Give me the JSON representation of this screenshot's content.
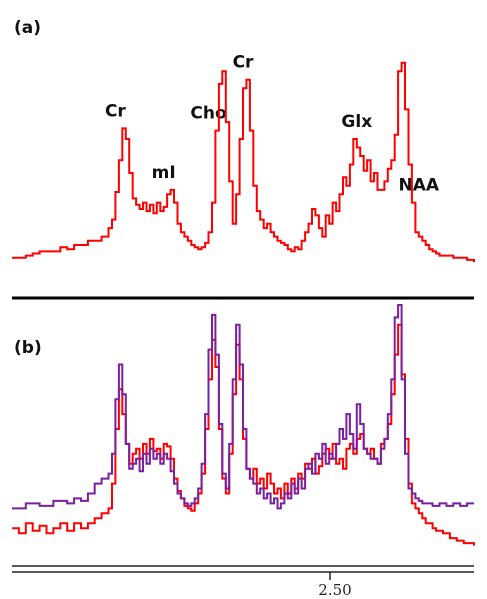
{
  "chart_data": [
    {
      "type": "line",
      "panel_label": "(a)",
      "peak_labels": [
        {
          "text": "Cr",
          "x": 30
        },
        {
          "text": "mI",
          "x": 44
        },
        {
          "text": "Cho",
          "x": 57
        },
        {
          "text": "Cr",
          "x": 67
        },
        {
          "text": "Glx",
          "x": 100
        },
        {
          "text": "NAA",
          "x": 118
        }
      ],
      "xlim": [
        0,
        134
      ],
      "ylim": [
        0,
        100
      ],
      "series": [
        {
          "color": "#ff0000",
          "x": [
            0,
            4,
            6,
            8,
            10,
            12,
            14,
            16,
            18,
            20,
            22,
            24,
            26,
            28,
            29,
            30,
            31,
            32,
            33,
            34,
            35,
            36,
            37,
            38,
            39,
            40,
            41,
            42,
            43,
            44,
            45,
            46,
            47,
            48,
            49,
            50,
            51,
            52,
            53,
            54,
            55,
            56,
            57,
            58,
            59,
            60,
            61,
            62,
            63,
            64,
            65,
            66,
            67,
            68,
            69,
            70,
            71,
            72,
            73,
            74,
            75,
            76,
            77,
            78,
            79,
            80,
            81,
            82,
            83,
            84,
            85,
            86,
            87,
            88,
            89,
            90,
            91,
            92,
            93,
            94,
            95,
            96,
            97,
            98,
            99,
            100,
            101,
            102,
            103,
            104,
            105,
            106,
            107,
            108,
            109,
            110,
            111,
            112,
            113,
            114,
            115,
            116,
            117,
            118,
            119,
            120,
            121,
            122,
            123,
            124,
            125,
            126,
            127,
            128,
            129,
            130,
            131,
            132,
            134
          ],
          "y": [
            2,
            3,
            4,
            5,
            5,
            5,
            7,
            6,
            8,
            8,
            10,
            10,
            12,
            16,
            20,
            33,
            48,
            63,
            58,
            42,
            30,
            27,
            25,
            28,
            24,
            27,
            23,
            28,
            24,
            26,
            32,
            34,
            28,
            18,
            14,
            12,
            10,
            8,
            7,
            6,
            7,
            9,
            14,
            28,
            62,
            84,
            90,
            66,
            38,
            18,
            32,
            58,
            82,
            86,
            62,
            36,
            24,
            20,
            16,
            18,
            14,
            12,
            10,
            9,
            8,
            6,
            5,
            7,
            6,
            10,
            14,
            18,
            25,
            22,
            16,
            12,
            22,
            18,
            28,
            24,
            32,
            40,
            36,
            46,
            58,
            54,
            50,
            43,
            48,
            38,
            42,
            34,
            34,
            38,
            44,
            48,
            60,
            90,
            94,
            72,
            46,
            28,
            14,
            12,
            10,
            8,
            6,
            5,
            4,
            3,
            3,
            3,
            3,
            2,
            2,
            2,
            2,
            1,
            0
          ]
        }
      ]
    },
    {
      "type": "line",
      "panel_label": "(b)",
      "tick_label": "2.50",
      "xlim": [
        0,
        134
      ],
      "ylim": [
        0,
        100
      ],
      "series": [
        {
          "color": "#ff0000",
          "x": [
            0,
            2,
            4,
            6,
            8,
            10,
            12,
            14,
            16,
            18,
            20,
            22,
            24,
            26,
            28,
            29,
            30,
            31,
            32,
            33,
            34,
            35,
            36,
            37,
            38,
            39,
            40,
            41,
            42,
            43,
            44,
            45,
            46,
            47,
            48,
            49,
            50,
            51,
            52,
            53,
            54,
            55,
            56,
            57,
            58,
            59,
            60,
            61,
            62,
            63,
            64,
            65,
            66,
            67,
            68,
            69,
            70,
            71,
            72,
            73,
            74,
            75,
            76,
            77,
            78,
            79,
            80,
            81,
            82,
            83,
            84,
            85,
            86,
            87,
            88,
            89,
            90,
            91,
            92,
            93,
            94,
            95,
            96,
            97,
            98,
            99,
            100,
            101,
            102,
            103,
            104,
            105,
            106,
            107,
            108,
            109,
            110,
            111,
            112,
            113,
            114,
            115,
            116,
            117,
            118,
            119,
            120,
            121,
            122,
            123,
            124,
            125,
            126,
            127,
            128,
            129,
            130,
            131,
            132,
            134
          ],
          "y": [
            10,
            8,
            12,
            9,
            11,
            8,
            10,
            12,
            9,
            12,
            10,
            12,
            14,
            16,
            18,
            28,
            50,
            66,
            56,
            44,
            36,
            40,
            42,
            38,
            44,
            40,
            46,
            41,
            42,
            38,
            44,
            43,
            38,
            30,
            25,
            22,
            19,
            18,
            17,
            20,
            24,
            32,
            50,
            70,
            86,
            75,
            50,
            30,
            24,
            40,
            64,
            84,
            70,
            46,
            34,
            30,
            34,
            28,
            30,
            26,
            32,
            28,
            24,
            26,
            22,
            28,
            24,
            30,
            26,
            32,
            30,
            36,
            34,
            38,
            32,
            35,
            40,
            42,
            38,
            44,
            36,
            38,
            34,
            42,
            44,
            40,
            46,
            48,
            42,
            40,
            42,
            38,
            36,
            44,
            46,
            52,
            64,
            80,
            92,
            72,
            46,
            28,
            20,
            18,
            16,
            14,
            12,
            12,
            10,
            9,
            9,
            8,
            8,
            6,
            6,
            5,
            5,
            4,
            4,
            3
          ]
        },
        {
          "color": "#7b1fa2",
          "x": [
            0,
            4,
            8,
            12,
            16,
            18,
            20,
            22,
            24,
            26,
            28,
            29,
            30,
            31,
            32,
            33,
            34,
            35,
            36,
            37,
            38,
            39,
            40,
            41,
            42,
            43,
            44,
            45,
            46,
            47,
            48,
            49,
            50,
            51,
            52,
            53,
            54,
            55,
            56,
            57,
            58,
            59,
            60,
            61,
            62,
            63,
            64,
            65,
            66,
            67,
            68,
            69,
            70,
            71,
            72,
            73,
            74,
            75,
            76,
            77,
            78,
            79,
            80,
            81,
            82,
            83,
            84,
            85,
            86,
            87,
            88,
            89,
            90,
            91,
            92,
            93,
            94,
            95,
            96,
            97,
            98,
            99,
            100,
            101,
            102,
            103,
            104,
            105,
            106,
            107,
            108,
            109,
            110,
            111,
            112,
            113,
            114,
            115,
            116,
            117,
            118,
            119,
            120,
            121,
            122,
            124,
            126,
            128,
            130,
            132,
            134
          ],
          "y": [
            18,
            20,
            19,
            21,
            20,
            22,
            21,
            24,
            28,
            30,
            32,
            40,
            62,
            76,
            64,
            44,
            34,
            36,
            38,
            33,
            40,
            36,
            42,
            38,
            40,
            36,
            40,
            38,
            33,
            28,
            24,
            22,
            20,
            19,
            20,
            22,
            26,
            36,
            56,
            82,
            96,
            80,
            52,
            32,
            26,
            44,
            70,
            92,
            76,
            50,
            34,
            30,
            28,
            24,
            26,
            22,
            24,
            20,
            22,
            18,
            20,
            24,
            22,
            28,
            24,
            30,
            26,
            34,
            36,
            32,
            40,
            38,
            44,
            36,
            40,
            38,
            44,
            50,
            46,
            56,
            48,
            42,
            60,
            52,
            42,
            40,
            38,
            38,
            36,
            42,
            46,
            56,
            70,
            95,
            100,
            70,
            40,
            26,
            24,
            22,
            21,
            20,
            20,
            20,
            19,
            20,
            19,
            20,
            19,
            20,
            20
          ]
        }
      ]
    }
  ]
}
